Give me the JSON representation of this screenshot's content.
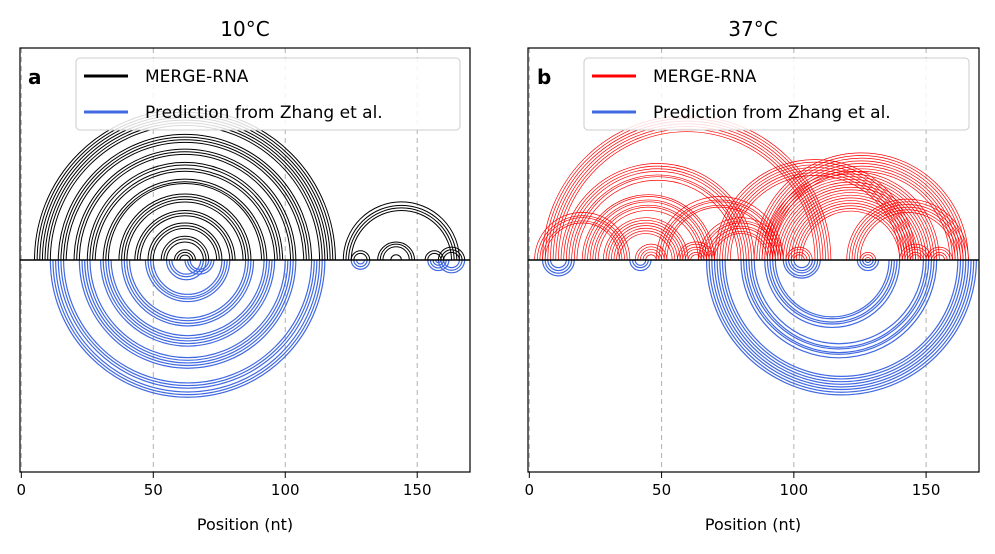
{
  "chart_data": [
    {
      "type": "arc",
      "panel_label": "a",
      "title": "10°C",
      "xlabel": "Position (nt)",
      "xlim": [
        -0.5,
        170
      ],
      "xticks": [
        0,
        50,
        100,
        150
      ],
      "grid": "vertical dashed at x ticks",
      "legend_position": "top-right",
      "series": [
        {
          "name": "MERGE-RNA",
          "color": "#000000",
          "side": "above",
          "pairs": [
            [
              5,
              119
            ],
            [
              6,
              118
            ],
            [
              7,
              117
            ],
            [
              8,
              116
            ],
            [
              9,
              115
            ],
            [
              10,
              114
            ],
            [
              11,
              113
            ],
            [
              14,
              110
            ],
            [
              15,
              109
            ],
            [
              16,
              108
            ],
            [
              17,
              107
            ],
            [
              20,
              104
            ],
            [
              21,
              103
            ],
            [
              22,
              102
            ],
            [
              25,
              99
            ],
            [
              26,
              98
            ],
            [
              27,
              97
            ],
            [
              28,
              96
            ],
            [
              31,
              93
            ],
            [
              32,
              92
            ],
            [
              33,
              91
            ],
            [
              37,
              87
            ],
            [
              38,
              86
            ],
            [
              39,
              85
            ],
            [
              40,
              84
            ],
            [
              43,
              81
            ],
            [
              44,
              80
            ],
            [
              45,
              79
            ],
            [
              48,
              76
            ],
            [
              49,
              75
            ],
            [
              50,
              74
            ],
            [
              53,
              71
            ],
            [
              54,
              70
            ],
            [
              55,
              69
            ],
            [
              58,
              66
            ],
            [
              59,
              65
            ],
            [
              60,
              64
            ],
            [
              125,
              132
            ],
            [
              126,
              131
            ],
            [
              135,
              149
            ],
            [
              136,
              148
            ],
            [
              137,
              147
            ],
            [
              140,
              144
            ],
            [
              153,
              160
            ],
            [
              154,
              159
            ],
            [
              158,
              168
            ],
            [
              159,
              167
            ],
            [
              160,
              166
            ],
            [
              122,
              166
            ],
            [
              123,
              165
            ],
            [
              124,
              164
            ],
            [
              125,
              163
            ]
          ]
        },
        {
          "name": "Prediction from Zhang et al.",
          "color": "#4169E1",
          "side": "below",
          "pairs": [
            [
              11,
              115
            ],
            [
              12,
              114
            ],
            [
              13,
              113
            ],
            [
              14,
              112
            ],
            [
              15,
              111
            ],
            [
              16,
              110
            ],
            [
              22,
              104
            ],
            [
              23,
              103
            ],
            [
              24,
              102
            ],
            [
              25,
              101
            ],
            [
              26,
              100
            ],
            [
              30,
              96
            ],
            [
              31,
              95
            ],
            [
              32,
              94
            ],
            [
              33,
              93
            ],
            [
              34,
              92
            ],
            [
              38,
              88
            ],
            [
              39,
              87
            ],
            [
              40,
              86
            ],
            [
              41,
              85
            ],
            [
              47,
              79
            ],
            [
              48,
              78
            ],
            [
              49,
              77
            ],
            [
              50,
              76
            ],
            [
              55,
              70
            ],
            [
              56,
              69
            ],
            [
              57,
              68
            ],
            [
              62,
              73
            ],
            [
              63,
              72
            ],
            [
              64,
              71
            ],
            [
              125,
              132
            ],
            [
              126,
              131
            ],
            [
              127,
              130
            ],
            [
              154,
              162
            ],
            [
              155,
              161
            ],
            [
              156,
              160
            ],
            [
              157,
              159
            ],
            [
              158,
              168
            ],
            [
              159,
              167
            ],
            [
              160,
              166
            ]
          ]
        }
      ]
    },
    {
      "type": "arc",
      "panel_label": "b",
      "title": "37°C",
      "xlabel": "Position (nt)",
      "xlim": [
        -0.5,
        170
      ],
      "xticks": [
        0,
        50,
        100,
        150
      ],
      "grid": "vertical dashed at x ticks",
      "legend_position": "top-right",
      "series": [
        {
          "name": "MERGE-RNA",
          "color": "#FF0000",
          "side": "above",
          "pairs": [
            [
              5,
              114
            ],
            [
              6,
              113
            ],
            [
              7,
              112
            ],
            [
              8,
              111
            ],
            [
              9,
              110
            ],
            [
              10,
              109
            ],
            [
              11,
              108
            ],
            [
              2,
              38
            ],
            [
              3,
              37
            ],
            [
              4,
              36
            ],
            [
              5,
              35
            ],
            [
              6,
              34
            ],
            [
              12,
              85
            ],
            [
              13,
              84
            ],
            [
              14,
              83
            ],
            [
              15,
              82
            ],
            [
              16,
              81
            ],
            [
              17,
              80
            ],
            [
              18,
              79
            ],
            [
              20,
              70
            ],
            [
              21,
              69
            ],
            [
              22,
              68
            ],
            [
              23,
              67
            ],
            [
              24,
              66
            ],
            [
              25,
              65
            ],
            [
              26,
              64
            ],
            [
              28,
              60
            ],
            [
              29,
              59
            ],
            [
              30,
              58
            ],
            [
              31,
              57
            ],
            [
              32,
              56
            ],
            [
              33,
              55
            ],
            [
              34,
              54
            ],
            [
              40,
              52
            ],
            [
              41,
              51
            ],
            [
              42,
              50
            ],
            [
              43,
              49
            ],
            [
              44,
              48
            ],
            [
              56,
              70
            ],
            [
              57,
              69
            ],
            [
              58,
              68
            ],
            [
              59,
              67
            ],
            [
              60,
              66
            ],
            [
              61,
              65
            ],
            [
              64,
              96
            ],
            [
              65,
              95
            ],
            [
              66,
              94
            ],
            [
              67,
              93
            ],
            [
              68,
              92
            ],
            [
              69,
              91
            ],
            [
              70,
              90
            ],
            [
              48,
              96
            ],
            [
              49,
              95
            ],
            [
              50,
              94
            ],
            [
              51,
              93
            ],
            [
              52,
              92
            ],
            [
              70,
              146
            ],
            [
              71,
              145
            ],
            [
              72,
              144
            ],
            [
              73,
              143
            ],
            [
              74,
              142
            ],
            [
              75,
              141
            ],
            [
              76,
              140
            ],
            [
              85,
              166
            ],
            [
              86,
              165
            ],
            [
              87,
              164
            ],
            [
              88,
              163
            ],
            [
              89,
              162
            ],
            [
              90,
              161
            ],
            [
              91,
              160
            ],
            [
              92,
              159
            ],
            [
              88,
              155
            ],
            [
              89,
              154
            ],
            [
              90,
              153
            ],
            [
              91,
              152
            ],
            [
              92,
              151
            ],
            [
              93,
              150
            ],
            [
              94,
              149
            ],
            [
              95,
              148
            ],
            [
              96,
              147
            ],
            [
              97,
              146
            ],
            [
              98,
              145
            ],
            [
              99,
              144
            ],
            [
              100,
              143
            ],
            [
              101,
              142
            ],
            [
              102,
              141
            ],
            [
              103,
              140
            ],
            [
              120,
              166
            ],
            [
              121,
              165
            ],
            [
              122,
              164
            ],
            [
              123,
              163
            ],
            [
              124,
              162
            ],
            [
              125,
              161
            ],
            [
              97,
              107
            ],
            [
              98,
              106
            ],
            [
              99,
              105
            ],
            [
              100,
              104
            ],
            [
              125,
              131
            ],
            [
              126,
              130
            ],
            [
              127,
              129
            ],
            [
              140,
              152
            ],
            [
              141,
              151
            ],
            [
              142,
              150
            ],
            [
              143,
              149
            ],
            [
              144,
              148
            ],
            [
              150,
              160
            ],
            [
              151,
              159
            ],
            [
              152,
              158
            ],
            [
              153,
              157
            ]
          ]
        },
        {
          "name": "Prediction from Zhang et al.",
          "color": "#4169E1",
          "side": "below",
          "pairs": [
            [
              5,
              17
            ],
            [
              6,
              16
            ],
            [
              7,
              15
            ],
            [
              8,
              14
            ],
            [
              38,
              46
            ],
            [
              39,
              45
            ],
            [
              40,
              44
            ],
            [
              67,
              169
            ],
            [
              68,
              168
            ],
            [
              69,
              167
            ],
            [
              70,
              166
            ],
            [
              71,
              165
            ],
            [
              72,
              164
            ],
            [
              73,
              163
            ],
            [
              74,
              162
            ],
            [
              80,
              154
            ],
            [
              81,
              153
            ],
            [
              82,
              152
            ],
            [
              83,
              151
            ],
            [
              84,
              150
            ],
            [
              85,
              149
            ],
            [
              89,
              140
            ],
            [
              90,
              139
            ],
            [
              91,
              138
            ],
            [
              92,
              137
            ],
            [
              93,
              136
            ],
            [
              96,
              110
            ],
            [
              97,
              109
            ],
            [
              98,
              108
            ],
            [
              99,
              107
            ],
            [
              100,
              106
            ],
            [
              124,
              132
            ],
            [
              125,
              131
            ],
            [
              126,
              130
            ],
            [
              127,
              129
            ]
          ]
        }
      ]
    }
  ]
}
